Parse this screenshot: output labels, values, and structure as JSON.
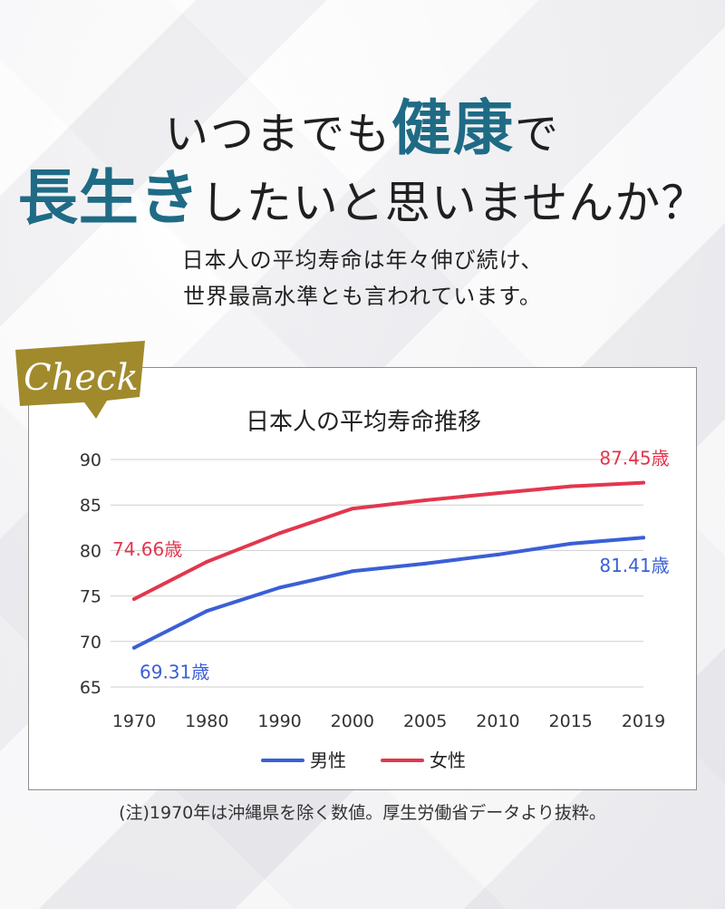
{
  "headline": {
    "line1_pre": "いつまでも",
    "line1_accent": "健康",
    "line1_post": "で",
    "line2_accent": "長生き",
    "line2_post": "したいと思いませんか？"
  },
  "subtext": {
    "line1": "日本人の平均寿命は年々伸び続け、",
    "line2": "世界最高水準とも言われています。"
  },
  "badge": {
    "label": "Check",
    "color": "#a08a2c"
  },
  "note": "(注)1970年は沖縄県を除く数値。厚生労働省データより抜粋。",
  "chart_data": {
    "type": "line",
    "title": "日本人の平均寿命推移",
    "categories": [
      "1970",
      "1980",
      "1990",
      "2000",
      "2005",
      "2010",
      "2015",
      "2019"
    ],
    "ylim": [
      65,
      90
    ],
    "yticks": [
      65,
      70,
      75,
      80,
      85,
      90
    ],
    "grid": true,
    "legend_position": "bottom",
    "series": [
      {
        "name": "男性",
        "color": "#3a5fd6",
        "values": [
          69.31,
          73.35,
          75.92,
          77.72,
          78.56,
          79.55,
          80.75,
          81.41
        ],
        "labels": [
          {
            "index": 0,
            "text": "69.31歳",
            "where": "below-right"
          },
          {
            "index": 7,
            "text": "81.41歳",
            "where": "below"
          }
        ]
      },
      {
        "name": "女性",
        "color": "#e2374e",
        "values": [
          74.66,
          78.76,
          81.9,
          84.6,
          85.52,
          86.3,
          87.05,
          87.45
        ],
        "labels": [
          {
            "index": 0,
            "text": "74.66歳",
            "where": "above-right"
          },
          {
            "index": 7,
            "text": "87.45歳",
            "where": "above"
          }
        ]
      }
    ]
  }
}
